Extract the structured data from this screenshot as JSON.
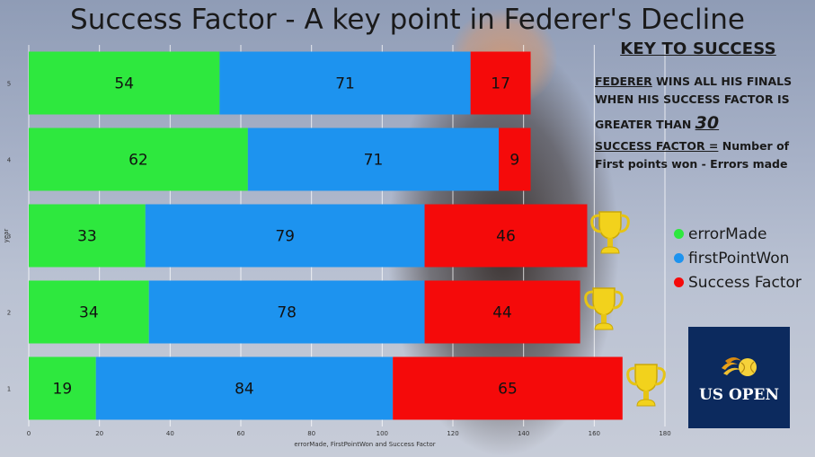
{
  "title": "Success Factor - A key point in Federer's Decline",
  "key_panel": {
    "heading": "KEY TO SUCCESS",
    "rule_name": "FEDERER",
    "rule_line1_rest": " WINS ALL HIS FINALS",
    "rule_line2": "WHEN HIS SUCCESS FACTOR IS",
    "rule_line3_prefix": "GREATER THAN ",
    "threshold": "30",
    "definition_term": "SUCCESS FACTOR =",
    "definition_line1_rest": " Number of",
    "definition_line2": "First points won - Errors made"
  },
  "logo_text": "US OPEN",
  "chart_data": {
    "type": "bar",
    "orientation": "horizontal",
    "stacked": true,
    "categories": [
      "1",
      "2",
      "3",
      "4",
      "5"
    ],
    "series": [
      {
        "name": "errorMade",
        "values": [
          19,
          34,
          33,
          62,
          54
        ],
        "color": "#2ee83e"
      },
      {
        "name": "firstPointWon",
        "values": [
          84,
          78,
          79,
          71,
          71
        ],
        "color": "#1d93ef"
      },
      {
        "name": "Success Factor",
        "values": [
          65,
          44,
          46,
          9,
          17
        ],
        "color": "#f50a0a"
      }
    ],
    "xlabel": "errorMade, FirstPointWon and Success Factor",
    "ylabel": "year",
    "xlim": [
      0,
      180
    ],
    "xticks": [
      "0",
      "20",
      "40",
      "60",
      "80",
      "100",
      "120",
      "140",
      "160",
      "180"
    ],
    "grid": true,
    "legend_position": "right",
    "trophy_years": [
      "1",
      "2",
      "3"
    ]
  }
}
